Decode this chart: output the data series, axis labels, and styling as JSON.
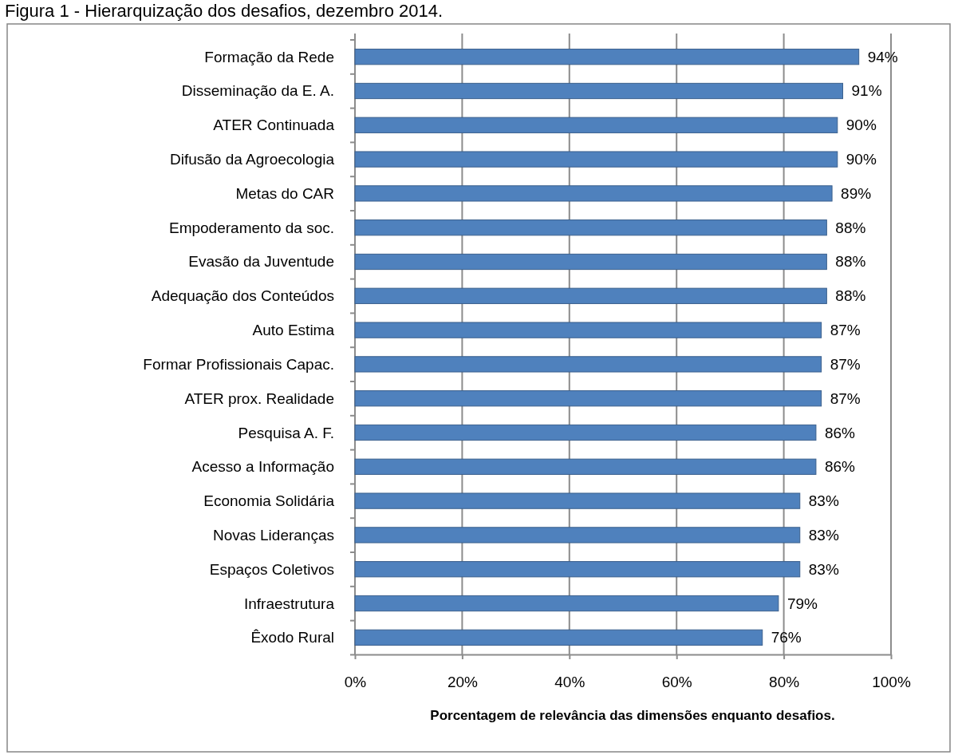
{
  "chart_data": {
    "type": "bar",
    "orientation": "horizontal",
    "title": "Figura 1 - Hierarquização dos desafios, dezembro 2014.",
    "xlabel": "Porcentagem de relevância das dimensões enquanto desafios.",
    "categories": [
      "Formação da Rede",
      "Disseminação da E. A.",
      "ATER Continuada",
      "Difusão da Agroecologia",
      "Metas do CAR",
      "Empoderamento da soc.",
      "Evasão da Juventude",
      "Adequação dos Conteúdos",
      "Auto Estima",
      "Formar Profissionais Capac.",
      "ATER prox. Realidade",
      "Pesquisa A. F.",
      "Acesso a Informação",
      "Economia Solidária",
      "Novas Lideranças",
      "Espaços Coletivos",
      "Infraestrutura",
      "Êxodo Rural"
    ],
    "values": [
      94,
      91,
      90,
      90,
      89,
      88,
      88,
      88,
      87,
      87,
      87,
      86,
      86,
      83,
      83,
      83,
      79,
      76
    ],
    "value_labels": [
      "94%",
      "91%",
      "90%",
      "90%",
      "89%",
      "88%",
      "88%",
      "88%",
      "87%",
      "87%",
      "87%",
      "86%",
      "86%",
      "83%",
      "83%",
      "83%",
      "79%",
      "76%"
    ],
    "color": "#4f81bd",
    "xlim": [
      0,
      100
    ],
    "xticks": [
      {
        "value": 0,
        "label": "0%"
      },
      {
        "value": 20,
        "label": "20%"
      },
      {
        "value": 40,
        "label": "40%"
      },
      {
        "value": 60,
        "label": "60%"
      },
      {
        "value": 80,
        "label": "80%"
      },
      {
        "value": 100,
        "label": "100%"
      }
    ],
    "grid": "x"
  }
}
